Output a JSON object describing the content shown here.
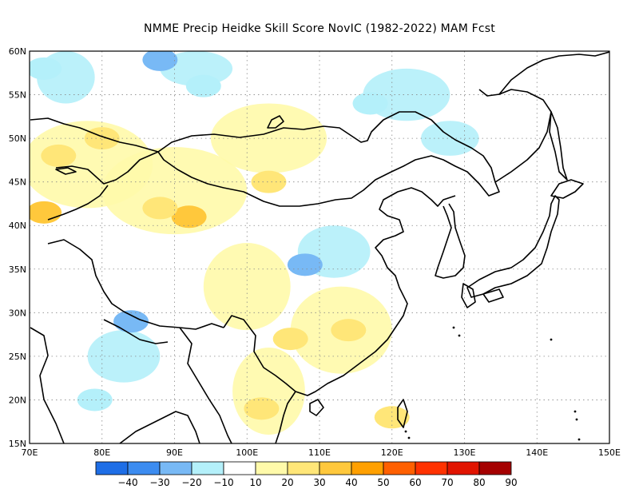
{
  "title": "NMME Precip Heidke Skill Score NovIC (1982-2022) MAM Fcst",
  "map": {
    "lon_range": [
      70,
      150
    ],
    "lat_range": [
      15,
      60
    ],
    "lat_labels": [
      "15N",
      "20N",
      "25N",
      "30N",
      "35N",
      "40N",
      "45N",
      "50N",
      "55N",
      "60N"
    ],
    "lon_labels": [
      "70E",
      "80E",
      "90E",
      "100E",
      "110E",
      "120E",
      "130E",
      "140E",
      "150E"
    ]
  },
  "colorbar": {
    "labels": [
      "-40",
      "-30",
      "-20",
      "-10",
      "10",
      "20",
      "30",
      "40",
      "50",
      "60",
      "70",
      "80",
      "90"
    ],
    "colors": [
      "#1e6ee6",
      "#3c8cf0",
      "#78b9f5",
      "#b4f0fa",
      "#ffffff",
      "#fffaaa",
      "#ffe678",
      "#ffc83c",
      "#ffa000",
      "#ff6000",
      "#ff3200",
      "#e11400",
      "#a50000"
    ]
  },
  "chart_data": {
    "type": "heatmap",
    "title": "NMME Precip Heidke Skill Score NovIC (1982-2022) MAM Fcst",
    "x_ticks": [
      "70E",
      "80E",
      "90E",
      "100E",
      "110E",
      "120E",
      "130E",
      "140E",
      "150E"
    ],
    "y_ticks": [
      "15N",
      "20N",
      "25N",
      "30N",
      "35N",
      "40N",
      "45N",
      "50N",
      "55N",
      "60N"
    ],
    "xlim": [
      70,
      150
    ],
    "ylim": [
      15,
      60
    ],
    "color_levels": [
      -40,
      -30,
      -20,
      -10,
      10,
      20,
      30,
      40,
      50,
      60,
      70,
      80,
      90
    ],
    "regions": [
      {
        "lon": 72,
        "lat": 41.5,
        "value": 35
      },
      {
        "lon": 74,
        "lat": 48,
        "value": 25
      },
      {
        "lon": 80,
        "lat": 50,
        "value": 25
      },
      {
        "lon": 92,
        "lat": 41,
        "value": 35
      },
      {
        "lon": 88,
        "lat": 42,
        "value": 25
      },
      {
        "lon": 103,
        "lat": 45,
        "value": 20
      },
      {
        "lon": 106,
        "lat": 27,
        "value": 20
      },
      {
        "lon": 102,
        "lat": 19,
        "value": 25
      },
      {
        "lon": 114,
        "lat": 28,
        "value": 20
      },
      {
        "lon": 120,
        "lat": 18,
        "value": 20
      },
      {
        "lon": 94,
        "lat": 56,
        "value": -15
      },
      {
        "lon": 84,
        "lat": 29,
        "value": -25
      },
      {
        "lon": 79,
        "lat": 20,
        "value": -15
      },
      {
        "lon": 108,
        "lat": 35.5,
        "value": -25
      },
      {
        "lon": 117,
        "lat": 54,
        "value": -15
      },
      {
        "lon": 88,
        "lat": 59,
        "value": -25
      },
      {
        "lon": 72,
        "lat": 58,
        "value": -15
      }
    ]
  }
}
